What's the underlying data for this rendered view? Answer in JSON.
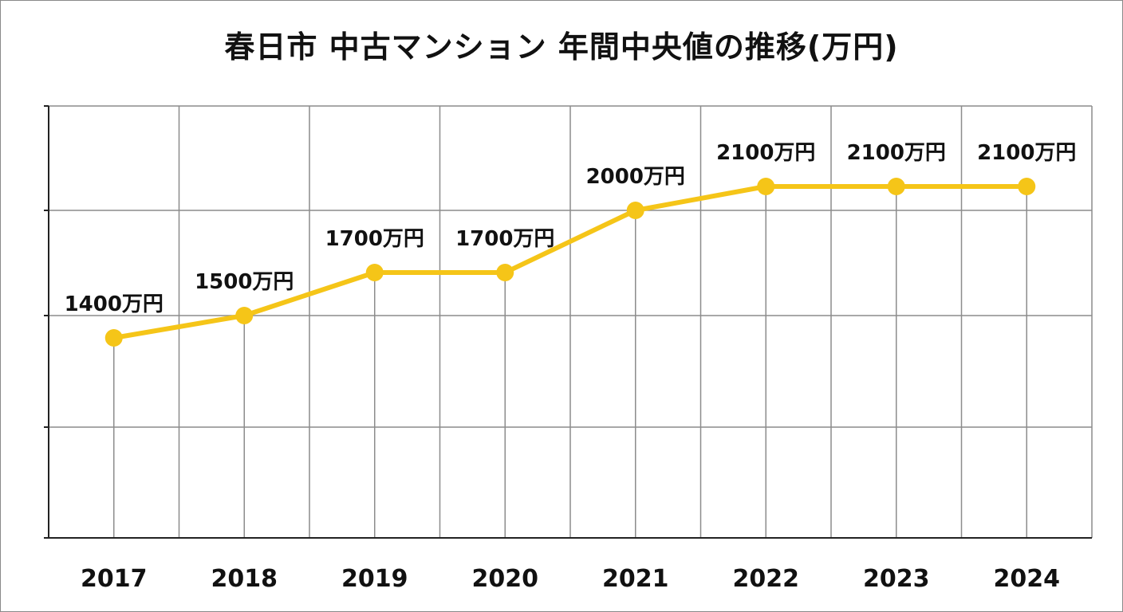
{
  "chart_data": {
    "type": "line",
    "title": "春日市 中古マンション 年間中央値の推移(万円)",
    "categories": [
      "2017",
      "2018",
      "2019",
      "2020",
      "2021",
      "2022",
      "2023",
      "2024"
    ],
    "values": [
      1400,
      1500,
      1700,
      1700,
      2000,
      2100,
      2100,
      2100
    ],
    "data_labels": [
      "1400万円",
      "1500万円",
      "1700万円",
      "1700万円",
      "2000万円",
      "2100万円",
      "2100万円",
      "2100万円"
    ],
    "xlabel": "",
    "ylabel": "",
    "ylim": [
      1000,
      2500
    ],
    "grid": true,
    "legend": "none",
    "colors": {
      "line": "#F5C518",
      "grid": "#8c8c8c",
      "axis": "#222222",
      "text": "#111111"
    }
  }
}
